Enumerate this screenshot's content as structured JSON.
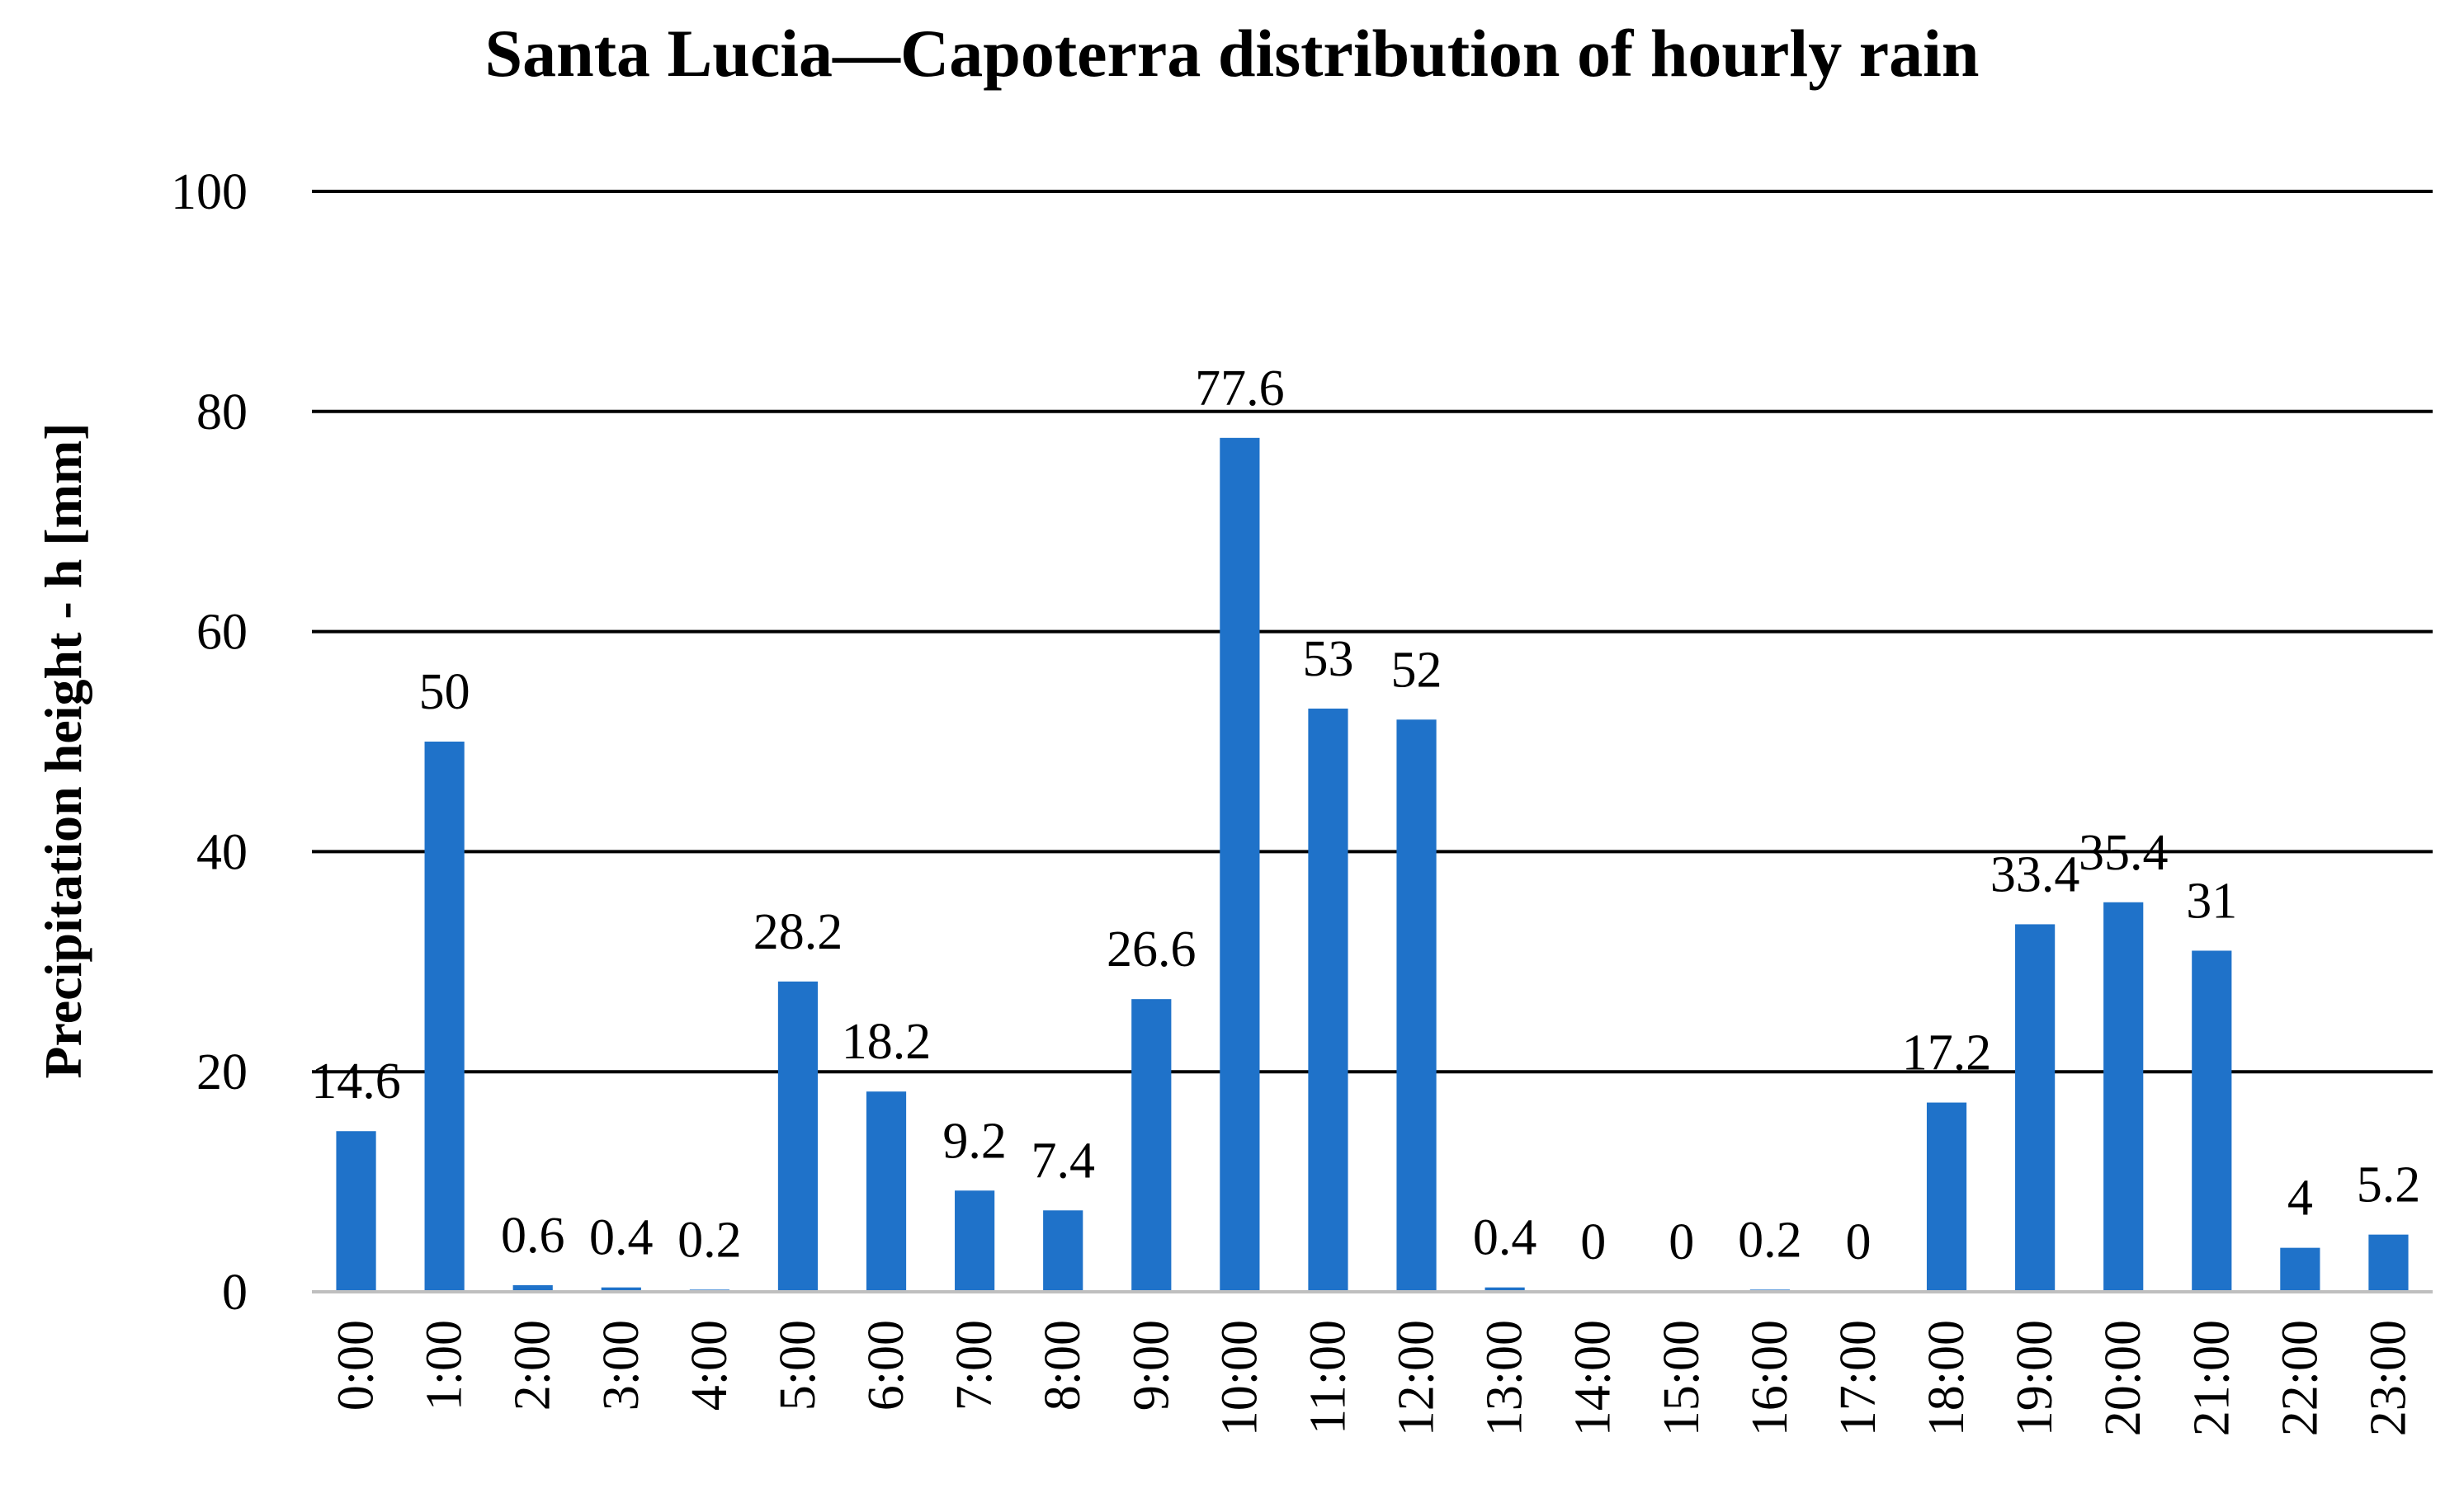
{
  "chart_data": {
    "type": "bar",
    "title": "Santa Lucia—Capoterra distribution of hourly rain",
    "xlabel": "",
    "ylabel": "Precipitation height - h [mm]",
    "ylim": [
      0,
      100
    ],
    "y_ticks": [
      "0",
      "20",
      "40",
      "60",
      "80",
      "100"
    ],
    "categories": [
      "0:00",
      "1:00",
      "2:00",
      "3:00",
      "4:00",
      "5:00",
      "6:00",
      "7:00",
      "8:00",
      "9:00",
      "10:00",
      "11:00",
      "12:00",
      "13:00",
      "14:00",
      "15:00",
      "16:00",
      "17:00",
      "18:00",
      "19:00",
      "20:00",
      "21:00",
      "22:00",
      "23:00"
    ],
    "values": [
      14.6,
      50,
      0.6,
      0.4,
      0.2,
      28.2,
      18.2,
      9.2,
      7.4,
      26.6,
      77.6,
      53,
      52,
      0.4,
      0,
      0,
      0.2,
      0,
      17.2,
      33.4,
      35.4,
      31,
      4,
      5.2
    ],
    "data_labels": [
      "14.6",
      "50",
      "0.6",
      "0.4",
      "0.2",
      "28.2",
      "18.2",
      "9.2",
      "7.4",
      "26.6",
      "77.6",
      "53",
      "52",
      "0.4",
      "0",
      "0",
      "0.2",
      "0",
      "17.2",
      "33.4",
      "35.4",
      "31",
      "4",
      "5.2"
    ],
    "grid": true,
    "legend": "none",
    "colors": {
      "bar": "#1f72c9",
      "gridline": "#000000",
      "baseline": "#bfbfbf",
      "text": "#000000"
    }
  }
}
